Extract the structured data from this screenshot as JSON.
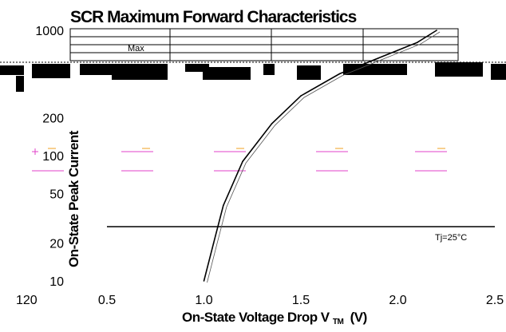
{
  "chart_data": {
    "type": "line",
    "title": "SCR Maximum Forward Characteristics",
    "xlabel": "On-State Voltage Drop Vℤ (V)",
    "xlabel_text": "On-State Voltage Drop V",
    "xlabel_sub": "TM",
    "xlabel_unit": "(V)",
    "ylabel": "On-State Peak Current",
    "x_ticks": [
      "0.5",
      "1.0",
      "1.5",
      "2.0",
      "2.5"
    ],
    "x_tick_values": [
      0.5,
      1.0,
      1.5,
      2.0,
      2.5
    ],
    "x_extra_tick": "120",
    "y_ticks": [
      "10",
      "20",
      "50",
      "100",
      "200",
      "1000"
    ],
    "y_tick_values": [
      10,
      20,
      50,
      100,
      200,
      1000
    ],
    "xlim": [
      0.5,
      2.5
    ],
    "ylim": [
      10,
      1000
    ],
    "y_scale": "log",
    "grid": true,
    "annotations": {
      "max_label": "Max",
      "tj_label": "Tj=25°C"
    },
    "series": [
      {
        "name": "Max",
        "x": [
          1.0,
          1.05,
          1.1,
          1.2,
          1.35,
          1.5,
          1.7,
          1.9,
          2.1,
          2.2
        ],
        "y": [
          10,
          20,
          40,
          90,
          180,
          300,
          450,
          600,
          800,
          1000
        ]
      }
    ]
  },
  "colors": {
    "line": "#000000",
    "grid": "#000000",
    "accent": "#e040c8",
    "accent2": "#f0a020"
  }
}
